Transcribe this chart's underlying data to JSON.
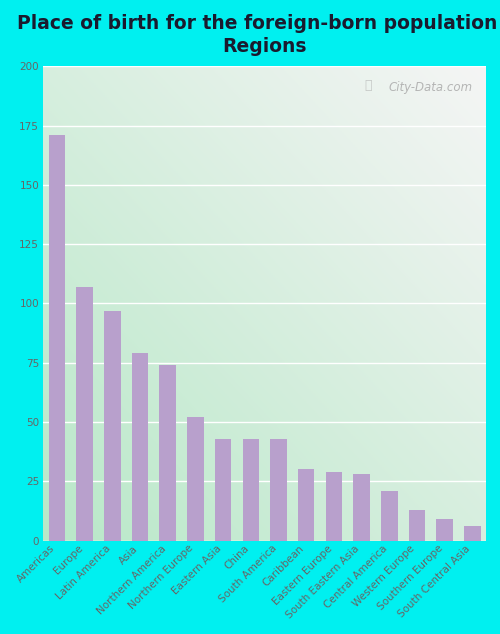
{
  "title": "Place of birth for the foreign-born population -\nRegions",
  "categories": [
    "Americas",
    "Europe",
    "Latin America",
    "Asia",
    "Northern America",
    "Northern Europe",
    "Eastern Asia",
    "China",
    "South America",
    "Caribbean",
    "Eastern Europe",
    "South Eastern Asia",
    "Central America",
    "Western Europe",
    "Southern Europe",
    "South Central Asia"
  ],
  "values": [
    171,
    107,
    97,
    79,
    74,
    52,
    43,
    43,
    43,
    30,
    29,
    28,
    21,
    13,
    9,
    6
  ],
  "bar_color": "#b8a0cc",
  "ylim": [
    0,
    200
  ],
  "yticks": [
    0,
    25,
    50,
    75,
    100,
    125,
    150,
    175,
    200
  ],
  "fig_bg_color": "#00f0f0",
  "title_fontsize": 13.5,
  "title_color": "#1a1a2e",
  "tick_fontsize": 7.5,
  "tick_color": "#666666",
  "watermark": "City-Data.com",
  "gradient_top_right": "#f5f5f5",
  "gradient_bottom_left": "#b8e8c8"
}
